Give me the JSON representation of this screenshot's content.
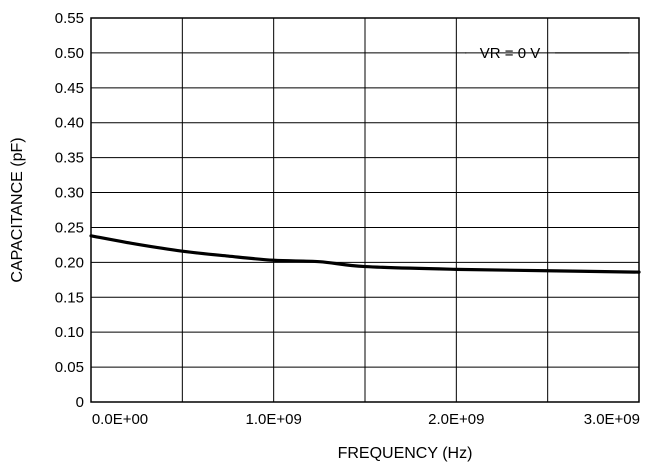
{
  "chart_data": {
    "type": "line",
    "title": "",
    "xlabel": "FREQUENCY (Hz)",
    "ylabel": "CAPACITANCE (pF)",
    "xlim": [
      0,
      3000000000
    ],
    "ylim": [
      0,
      0.55
    ],
    "x_ticks": [
      {
        "value": 0,
        "label": "0.0E+00"
      },
      {
        "value": 1000000000,
        "label": "1.0E+09"
      },
      {
        "value": 2000000000,
        "label": "2.0E+09"
      },
      {
        "value": 3000000000,
        "label": "3.0E+09"
      }
    ],
    "x_gridlines": [
      0,
      500000000,
      1000000000,
      1500000000,
      2000000000,
      2500000000,
      3000000000
    ],
    "y_ticks": [
      {
        "value": 0,
        "label": "0"
      },
      {
        "value": 0.05,
        "label": "0.05"
      },
      {
        "value": 0.1,
        "label": "0.10"
      },
      {
        "value": 0.15,
        "label": "0.15"
      },
      {
        "value": 0.2,
        "label": "0.20"
      },
      {
        "value": 0.25,
        "label": "0.25"
      },
      {
        "value": 0.3,
        "label": "0.30"
      },
      {
        "value": 0.35,
        "label": "0.35"
      },
      {
        "value": 0.4,
        "label": "0.40"
      },
      {
        "value": 0.45,
        "label": "0.45"
      },
      {
        "value": 0.5,
        "label": "0.50"
      },
      {
        "value": 0.55,
        "label": "0.55"
      }
    ],
    "grid": true,
    "annotation": "VR = 0 V",
    "series": [
      {
        "color": "#000000",
        "x": [
          0,
          250000000,
          500000000,
          750000000,
          1000000000,
          1250000000,
          1500000000,
          2000000000,
          2500000000,
          3000000000
        ],
        "y": [
          0.238,
          0.226,
          0.216,
          0.209,
          0.203,
          0.201,
          0.194,
          0.19,
          0.188,
          0.186
        ]
      }
    ]
  }
}
